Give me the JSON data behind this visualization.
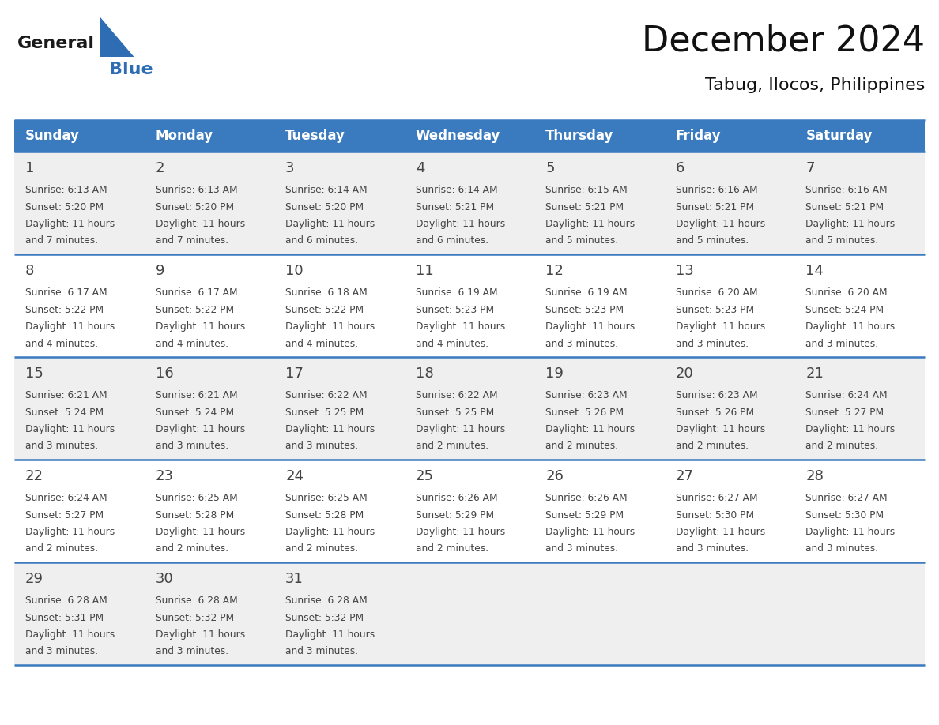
{
  "title": "December 2024",
  "subtitle": "Tabug, Ilocos, Philippines",
  "days_of_week": [
    "Sunday",
    "Monday",
    "Tuesday",
    "Wednesday",
    "Thursday",
    "Friday",
    "Saturday"
  ],
  "header_bg": "#3a7abf",
  "header_text": "#ffffff",
  "row_bg_odd": "#efefef",
  "row_bg_even": "#ffffff",
  "border_color": "#3a7abf",
  "text_color": "#444444",
  "day_num_color": "#444444",
  "logo_black": "#1a1a1a",
  "logo_blue": "#2e6db4",
  "calendar_data": [
    [
      {
        "day": 1,
        "sunrise": "6:13 AM",
        "sunset": "5:20 PM",
        "daylight": "11 hours and 7 minutes."
      },
      {
        "day": 2,
        "sunrise": "6:13 AM",
        "sunset": "5:20 PM",
        "daylight": "11 hours and 7 minutes."
      },
      {
        "day": 3,
        "sunrise": "6:14 AM",
        "sunset": "5:20 PM",
        "daylight": "11 hours and 6 minutes."
      },
      {
        "day": 4,
        "sunrise": "6:14 AM",
        "sunset": "5:21 PM",
        "daylight": "11 hours and 6 minutes."
      },
      {
        "day": 5,
        "sunrise": "6:15 AM",
        "sunset": "5:21 PM",
        "daylight": "11 hours and 5 minutes."
      },
      {
        "day": 6,
        "sunrise": "6:16 AM",
        "sunset": "5:21 PM",
        "daylight": "11 hours and 5 minutes."
      },
      {
        "day": 7,
        "sunrise": "6:16 AM",
        "sunset": "5:21 PM",
        "daylight": "11 hours and 5 minutes."
      }
    ],
    [
      {
        "day": 8,
        "sunrise": "6:17 AM",
        "sunset": "5:22 PM",
        "daylight": "11 hours and 4 minutes."
      },
      {
        "day": 9,
        "sunrise": "6:17 AM",
        "sunset": "5:22 PM",
        "daylight": "11 hours and 4 minutes."
      },
      {
        "day": 10,
        "sunrise": "6:18 AM",
        "sunset": "5:22 PM",
        "daylight": "11 hours and 4 minutes."
      },
      {
        "day": 11,
        "sunrise": "6:19 AM",
        "sunset": "5:23 PM",
        "daylight": "11 hours and 4 minutes."
      },
      {
        "day": 12,
        "sunrise": "6:19 AM",
        "sunset": "5:23 PM",
        "daylight": "11 hours and 3 minutes."
      },
      {
        "day": 13,
        "sunrise": "6:20 AM",
        "sunset": "5:23 PM",
        "daylight": "11 hours and 3 minutes."
      },
      {
        "day": 14,
        "sunrise": "6:20 AM",
        "sunset": "5:24 PM",
        "daylight": "11 hours and 3 minutes."
      }
    ],
    [
      {
        "day": 15,
        "sunrise": "6:21 AM",
        "sunset": "5:24 PM",
        "daylight": "11 hours and 3 minutes."
      },
      {
        "day": 16,
        "sunrise": "6:21 AM",
        "sunset": "5:24 PM",
        "daylight": "11 hours and 3 minutes."
      },
      {
        "day": 17,
        "sunrise": "6:22 AM",
        "sunset": "5:25 PM",
        "daylight": "11 hours and 3 minutes."
      },
      {
        "day": 18,
        "sunrise": "6:22 AM",
        "sunset": "5:25 PM",
        "daylight": "11 hours and 2 minutes."
      },
      {
        "day": 19,
        "sunrise": "6:23 AM",
        "sunset": "5:26 PM",
        "daylight": "11 hours and 2 minutes."
      },
      {
        "day": 20,
        "sunrise": "6:23 AM",
        "sunset": "5:26 PM",
        "daylight": "11 hours and 2 minutes."
      },
      {
        "day": 21,
        "sunrise": "6:24 AM",
        "sunset": "5:27 PM",
        "daylight": "11 hours and 2 minutes."
      }
    ],
    [
      {
        "day": 22,
        "sunrise": "6:24 AM",
        "sunset": "5:27 PM",
        "daylight": "11 hours and 2 minutes."
      },
      {
        "day": 23,
        "sunrise": "6:25 AM",
        "sunset": "5:28 PM",
        "daylight": "11 hours and 2 minutes."
      },
      {
        "day": 24,
        "sunrise": "6:25 AM",
        "sunset": "5:28 PM",
        "daylight": "11 hours and 2 minutes."
      },
      {
        "day": 25,
        "sunrise": "6:26 AM",
        "sunset": "5:29 PM",
        "daylight": "11 hours and 2 minutes."
      },
      {
        "day": 26,
        "sunrise": "6:26 AM",
        "sunset": "5:29 PM",
        "daylight": "11 hours and 3 minutes."
      },
      {
        "day": 27,
        "sunrise": "6:27 AM",
        "sunset": "5:30 PM",
        "daylight": "11 hours and 3 minutes."
      },
      {
        "day": 28,
        "sunrise": "6:27 AM",
        "sunset": "5:30 PM",
        "daylight": "11 hours and 3 minutes."
      }
    ],
    [
      {
        "day": 29,
        "sunrise": "6:28 AM",
        "sunset": "5:31 PM",
        "daylight": "11 hours and 3 minutes."
      },
      {
        "day": 30,
        "sunrise": "6:28 AM",
        "sunset": "5:32 PM",
        "daylight": "11 hours and 3 minutes."
      },
      {
        "day": 31,
        "sunrise": "6:28 AM",
        "sunset": "5:32 PM",
        "daylight": "11 hours and 3 minutes."
      },
      null,
      null,
      null,
      null
    ]
  ]
}
